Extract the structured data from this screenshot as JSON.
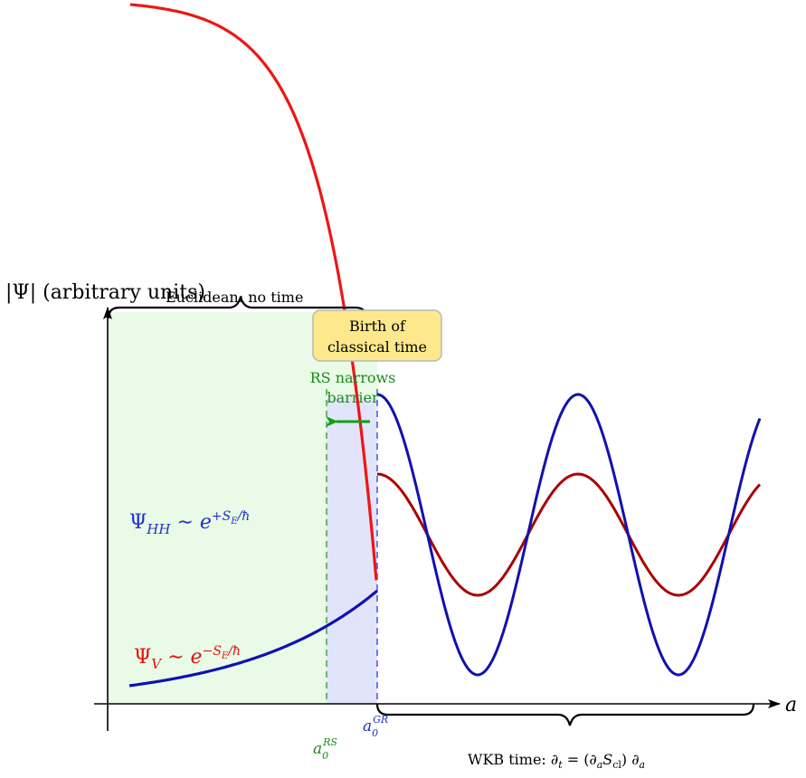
{
  "figure": {
    "ylabel": "|Ψ| (arbitrary units)",
    "xlabel": "a",
    "euclidean_brace_label": "Euclidean: no time",
    "birth_box": {
      "line1": "Birth of",
      "line2": "classical time",
      "fill": "#fde98c",
      "stroke": "#b8b8b8"
    },
    "rs_note": {
      "line1": "RS narrows",
      "line2": "barrier",
      "color": "#1a8a1a"
    },
    "tick_rs": {
      "base": "a",
      "sub": "0",
      "sup": "RS",
      "color": "#1a8a1a"
    },
    "tick_gr": {
      "base": "a",
      "sub": "0",
      "sup": "GR",
      "color": "#1f2fd0"
    },
    "psi_hh": {
      "label": "Ψ",
      "sub": "HH",
      "rhs": " ∼ e",
      "exp": "+S",
      "exp_sub": "E",
      "exp_tail": "/ħ",
      "color": "#1f2fd0"
    },
    "psi_v": {
      "label": "Ψ",
      "sub": "V",
      "rhs": " ∼ e",
      "exp": "−S",
      "exp_sub": "E",
      "exp_tail": "/ħ",
      "color": "#e01010"
    },
    "wkb": {
      "prefix": "WKB time: ∂",
      "t_sub": "t",
      "eq": " = (∂",
      "a_sub": "a",
      "S": "S",
      "cl_sub": "cl",
      "tail": ") ∂",
      "a2_sub": "a"
    },
    "colors": {
      "euclidean_region": "#e9fbe6",
      "narrowed_region": "#e2e4fb",
      "red_curve": "#ee1515",
      "blue_curve": "#1111b0",
      "darkred_curve": "#aa0000",
      "rs_line": "#2a9a2a",
      "gr_line": "#2a3ae0",
      "arrow": "#12a012"
    }
  }
}
